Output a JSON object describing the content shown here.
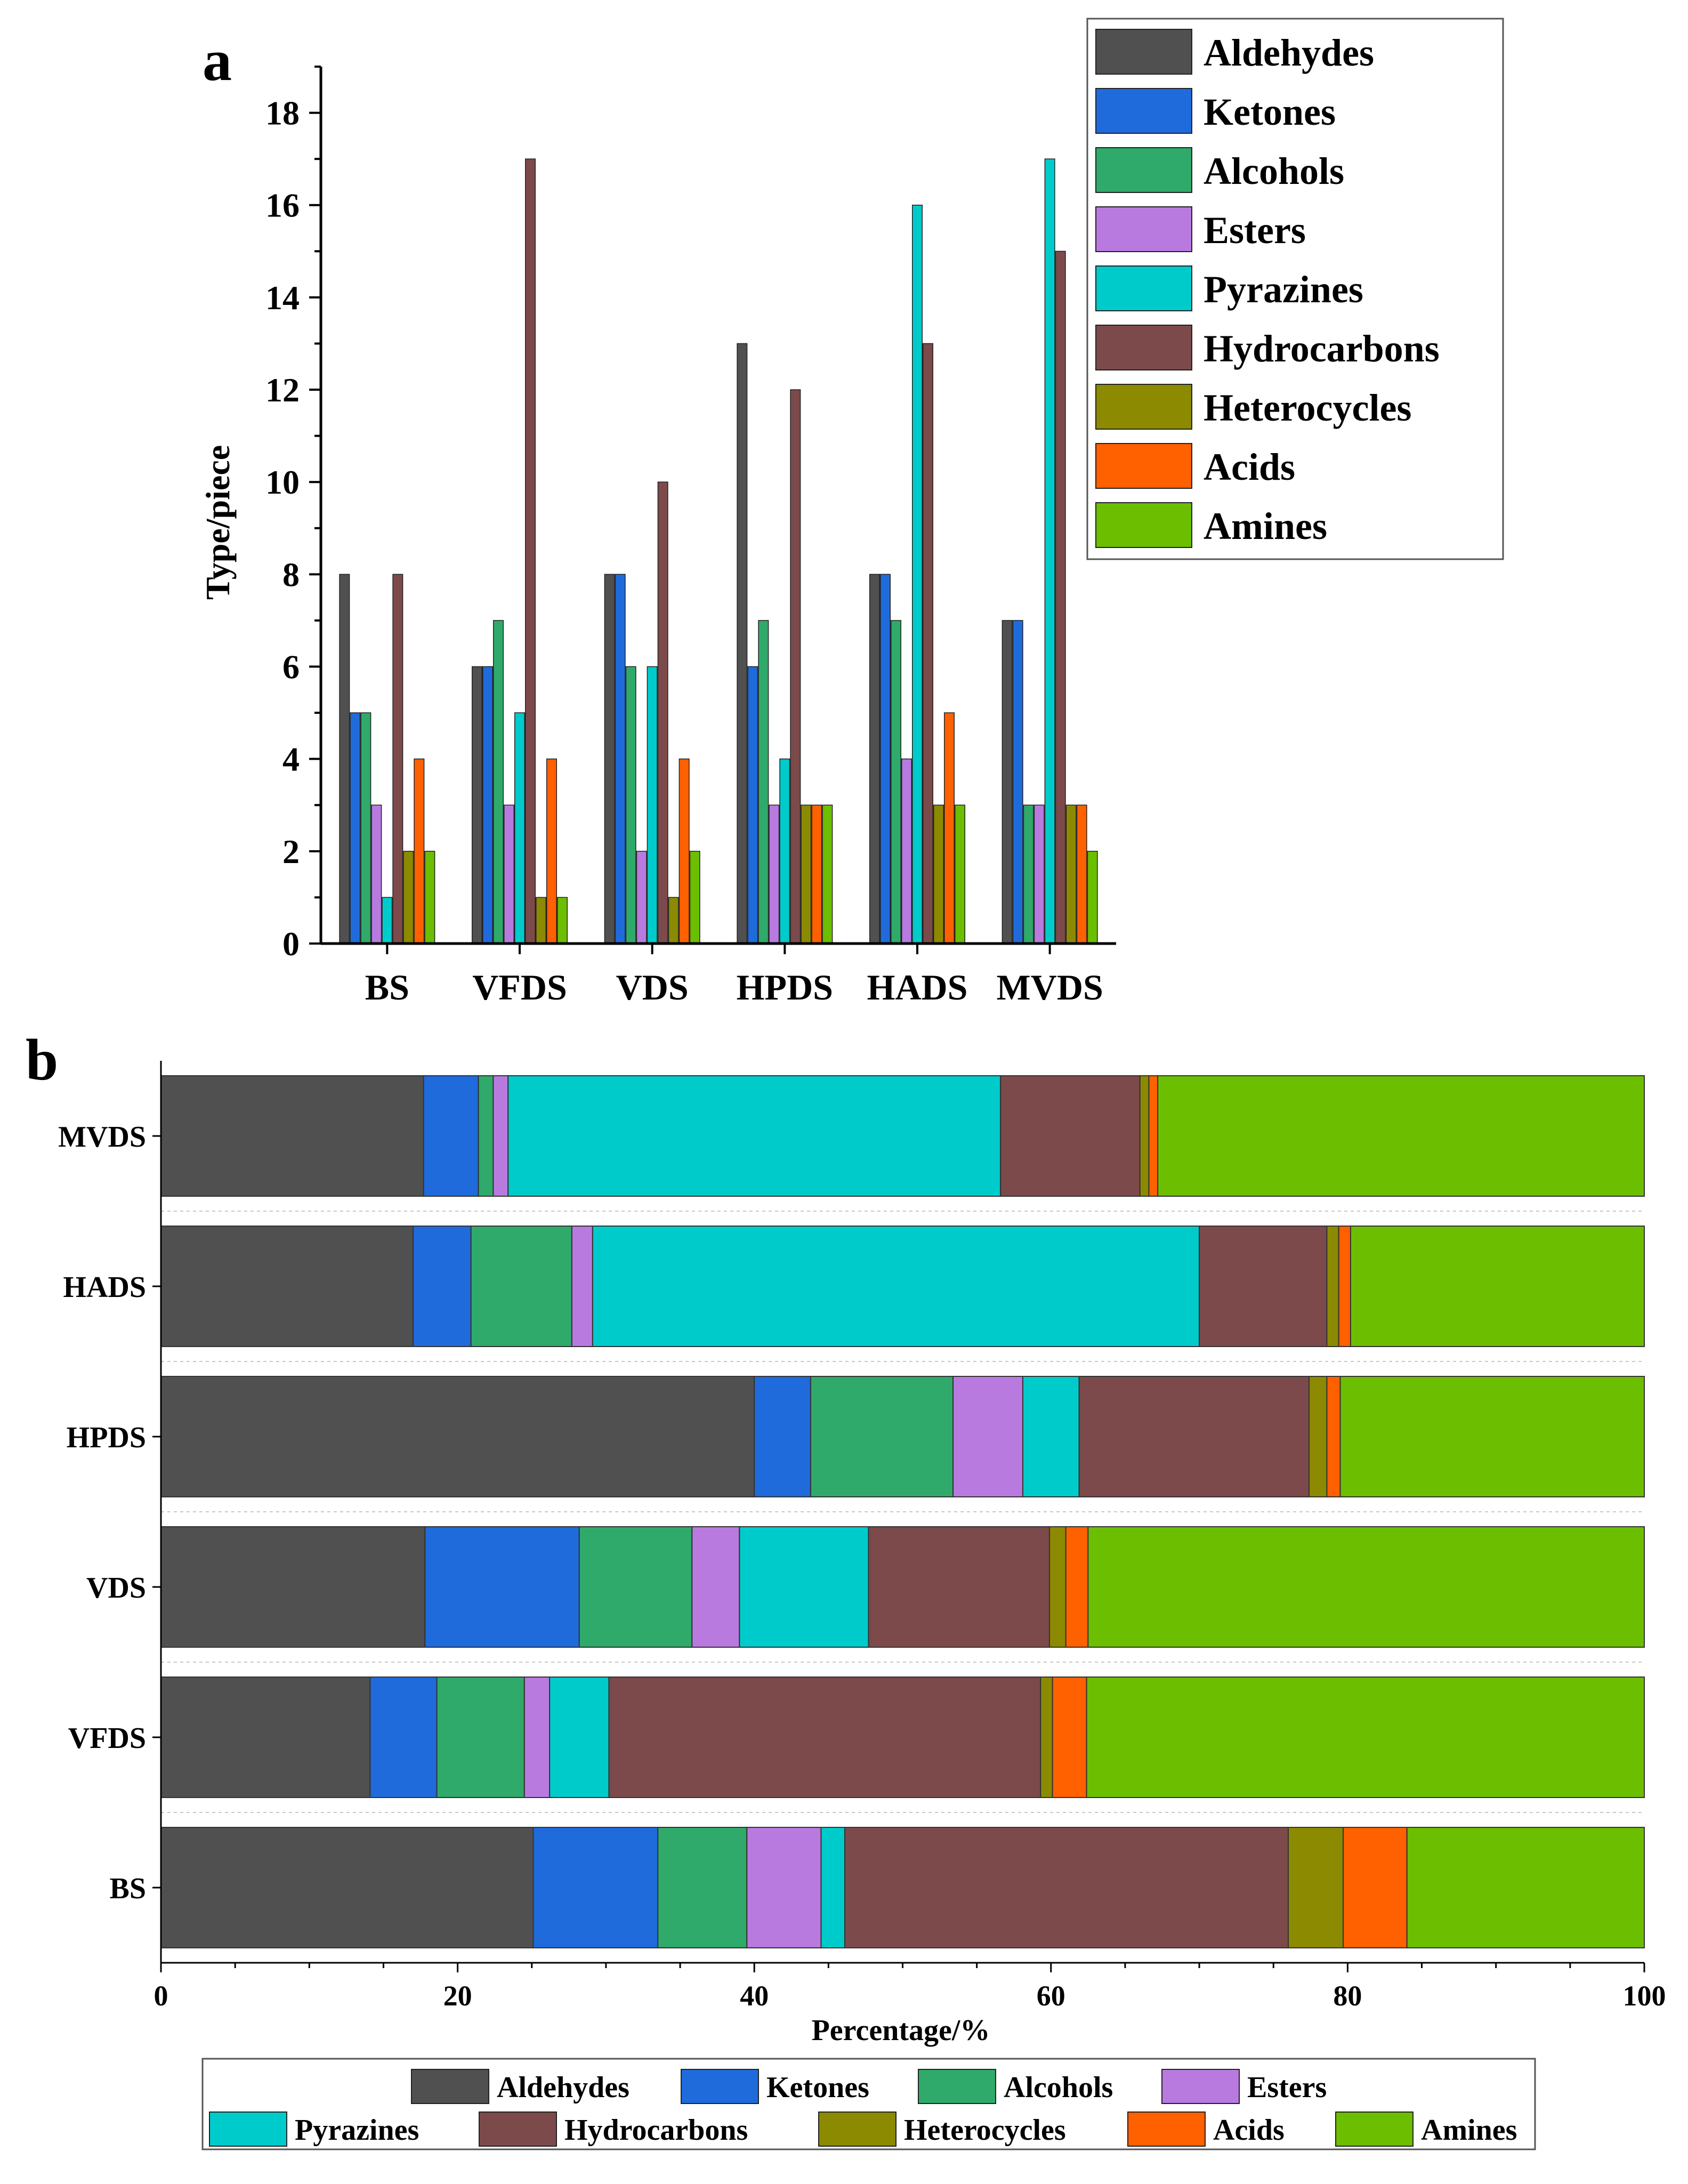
{
  "panel_labels": {
    "a": "a",
    "b": "b"
  },
  "legend_a": [
    "Aldehydes",
    "Ketones",
    "Alcohols",
    "Esters",
    "Pyrazines",
    "Hydrocarbons",
    "Heterocycles",
    "Acids",
    "Amines"
  ],
  "legend_b": [
    "Aldehydes",
    "Ketones",
    "Alcohols",
    "Esters",
    "Pyrazines",
    "Hydrocarbons",
    "Heterocycles",
    "Acids",
    "Amines"
  ],
  "colors": {
    "Aldehydes": "#505050",
    "Ketones": "#1f6bdc",
    "Alcohols": "#2faa6a",
    "Esters": "#b97ae0",
    "Pyrazines": "#00cbcb",
    "Hydrocarbons": "#7c4a4a",
    "Heterocycles": "#8c8a00",
    "Acids": "#ff6000",
    "Amines": "#6cbe00"
  },
  "chart_data": [
    {
      "type": "bar",
      "panel": "a",
      "ylabel": "Type/piece",
      "xlabel": "",
      "ylim": [
        0,
        19
      ],
      "yticks": [
        0,
        2,
        4,
        6,
        8,
        10,
        12,
        14,
        16,
        18
      ],
      "categories": [
        "BS",
        "VFDS",
        "VDS",
        "HPDS",
        "HADS",
        "MVDS"
      ],
      "legend_position": "top-right",
      "series": [
        {
          "name": "Aldehydes",
          "values": [
            8,
            6,
            8,
            13,
            8,
            7
          ]
        },
        {
          "name": "Ketones",
          "values": [
            5,
            6,
            8,
            6,
            8,
            7
          ]
        },
        {
          "name": "Alcohols",
          "values": [
            5,
            7,
            6,
            7,
            7,
            3
          ]
        },
        {
          "name": "Esters",
          "values": [
            3,
            3,
            2,
            3,
            4,
            3
          ]
        },
        {
          "name": "Pyrazines",
          "values": [
            1,
            5,
            6,
            4,
            16,
            17
          ]
        },
        {
          "name": "Hydrocarbons",
          "values": [
            8,
            17,
            10,
            12,
            13,
            15
          ]
        },
        {
          "name": "Heterocycles",
          "values": [
            2,
            1,
            1,
            3,
            3,
            3
          ]
        },
        {
          "name": "Acids",
          "values": [
            4,
            4,
            4,
            3,
            5,
            3
          ]
        },
        {
          "name": "Amines",
          "values": [
            2,
            1,
            2,
            3,
            3,
            2
          ]
        }
      ]
    },
    {
      "type": "bar",
      "orientation": "horizontal",
      "stacked": true,
      "panel": "b",
      "xlabel": "Percentage/%",
      "ylabel": "",
      "xlim": [
        0,
        100
      ],
      "xticks": [
        0,
        20,
        40,
        60,
        80,
        100
      ],
      "categories": [
        "MVDS",
        "HADS",
        "HPDS",
        "VDS",
        "VFDS",
        "BS"
      ],
      "legend_position": "bottom",
      "series": [
        {
          "name": "Aldehydes",
          "values": [
            17.7,
            17.0,
            40.0,
            17.8,
            14.1,
            25.1
          ]
        },
        {
          "name": "Ketones",
          "values": [
            3.7,
            3.9,
            3.8,
            10.4,
            4.5,
            8.4
          ]
        },
        {
          "name": "Alcohols",
          "values": [
            1.0,
            6.8,
            9.6,
            7.6,
            5.9,
            6.0
          ]
        },
        {
          "name": "Esters",
          "values": [
            1.0,
            1.4,
            4.7,
            3.2,
            1.7,
            5.0
          ]
        },
        {
          "name": "Pyrazines",
          "values": [
            33.2,
            40.9,
            3.8,
            8.7,
            4.0,
            1.6
          ]
        },
        {
          "name": "Hydrocarbons",
          "values": [
            9.4,
            8.6,
            15.5,
            12.2,
            29.1,
            29.9
          ]
        },
        {
          "name": "Heterocycles",
          "values": [
            0.6,
            0.8,
            1.2,
            1.1,
            0.8,
            3.7
          ]
        },
        {
          "name": "Acids",
          "values": [
            0.6,
            0.8,
            0.9,
            1.5,
            2.3,
            4.3
          ]
        },
        {
          "name": "Amines",
          "values": [
            32.8,
            19.8,
            20.5,
            37.5,
            37.6,
            16.0
          ]
        }
      ]
    }
  ]
}
